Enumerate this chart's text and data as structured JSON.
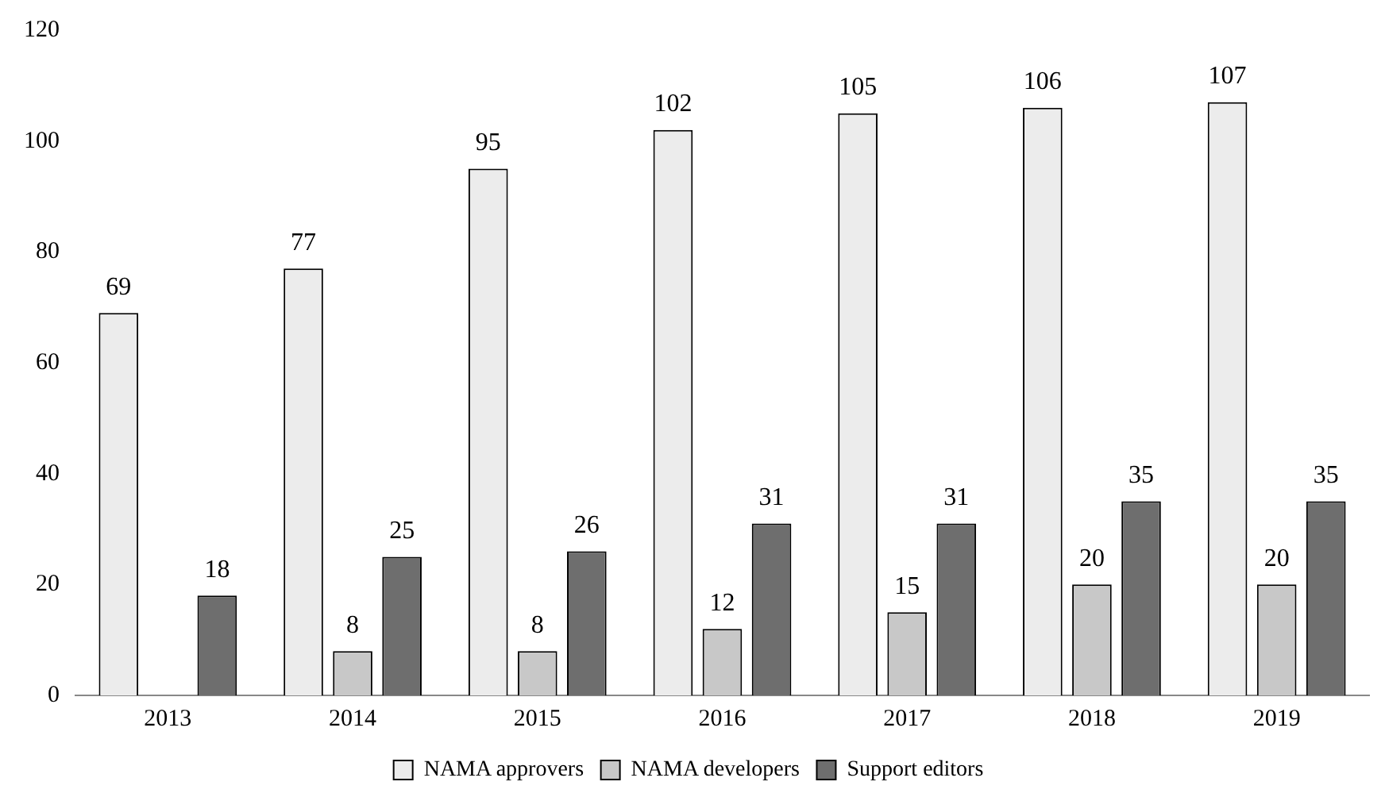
{
  "chart_data": {
    "type": "bar",
    "categories": [
      "2013",
      "2014",
      "2015",
      "2016",
      "2017",
      "2018",
      "2019"
    ],
    "series": [
      {
        "name": "NAMA approvers",
        "color": "#ececec",
        "values": [
          69,
          77,
          95,
          102,
          105,
          106,
          107
        ]
      },
      {
        "name": "NAMA developers",
        "color": "#c8c8c8",
        "values": [
          null,
          8,
          8,
          12,
          15,
          20,
          20
        ]
      },
      {
        "name": "Support editors",
        "color": "#6e6e6e",
        "values": [
          18,
          25,
          26,
          31,
          31,
          35,
          35
        ]
      }
    ],
    "ylim": [
      0,
      120
    ],
    "yticks": [
      0,
      20,
      40,
      60,
      80,
      100,
      120
    ],
    "grid": false,
    "legend": "bottom",
    "data_labels": true
  }
}
